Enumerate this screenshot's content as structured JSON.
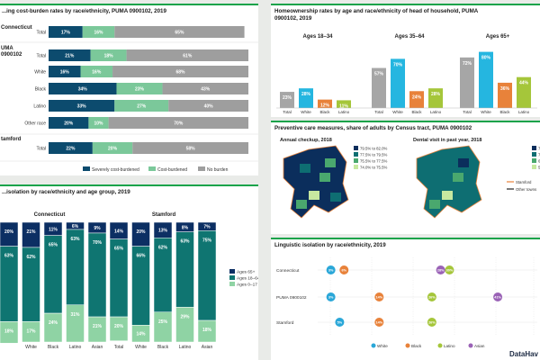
{
  "colors": {
    "severe": "#0c4b6e",
    "cost": "#7bc89a",
    "noburden": "#9e9e9e",
    "age65": "#0c2f63",
    "age1864": "#0f7571",
    "age017": "#8fd3a4",
    "white": "#2aa7d8",
    "black": "#e8823a",
    "latino": "#a5c63a",
    "asian": "#9a62b6",
    "homeown": [
      "#a6a6a6",
      "#25b6e0",
      "#e8823a",
      "#a5c63a"
    ],
    "map": [
      "#0b2e5c",
      "#0e6e72",
      "#4aa86e",
      "#c6e8a0"
    ]
  },
  "chart_data": [
    {
      "id": "cost_burden",
      "type": "bar",
      "title": "...ing cost-burden rates by race/ethnicity, PUMA 0900102, 2019",
      "groups": [
        {
          "label": "Connecticut",
          "rows": [
            {
              "category": "Total",
              "values": [
                17,
                16,
                65
              ]
            }
          ]
        },
        {
          "label": "UMA\n0900102",
          "rows": [
            {
              "category": "Total",
              "values": [
                21,
                18,
                61
              ]
            },
            {
              "category": "White",
              "values": [
                16,
                16,
                68
              ]
            },
            {
              "category": "Black",
              "values": [
                34,
                23,
                43
              ]
            },
            {
              "category": "Latino",
              "values": [
                33,
                27,
                40
              ]
            },
            {
              "category": "Other race",
              "values": [
                20,
                10,
                70
              ]
            }
          ]
        },
        {
          "label": "tamford",
          "rows": [
            {
              "category": "Total",
              "values": [
                22,
                20,
                58
              ]
            }
          ]
        }
      ],
      "series": [
        {
          "name": "Severely cost-burdened"
        },
        {
          "name": "Cost-burdened"
        },
        {
          "name": "No burden"
        }
      ]
    },
    {
      "id": "homeownership",
      "type": "bar",
      "title": "Homeownership rates by age and race/ethnicity of head of household, PUMA 0900102, 2019",
      "categories": [
        "Total",
        "White",
        "Black",
        "Latino"
      ],
      "panels": [
        {
          "label": "Ages 18–34",
          "values": [
            23,
            28,
            12,
            11
          ]
        },
        {
          "label": "Ages 35–64",
          "values": [
            57,
            70,
            24,
            28
          ]
        },
        {
          "label": "Ages 65+",
          "values": [
            72,
            80,
            36,
            44
          ]
        }
      ]
    },
    {
      "id": "preventive_maps",
      "type": "heatmap",
      "title": "Preventive care measures, share of adults by Census tract, PUMA 0900102",
      "maps": [
        {
          "label": "Annual checkup, 2018",
          "legend": [
            "79.5% to 82.0%",
            "77.5% to 79.5%",
            "75.5% to 77.5%",
            "74.0% to 75.5%"
          ]
        },
        {
          "label": "Dental visit in past year, 2018",
          "legend": [
            "77.5% to 65.0%",
            "75.0% to 77.5%",
            "64.0% to 75.0%",
            "54.0% to 64.0%"
          ]
        }
      ],
      "overlay_legend": [
        "Stamford",
        "Other towns"
      ]
    },
    {
      "id": "linguistic_age",
      "type": "bar",
      "title": "...isolation by race/ethnicity and age group, 2019",
      "panels": [
        {
          "label": "Connecticut",
          "categories": [
            "",
            "White",
            "Black",
            "Latino",
            "Asian"
          ],
          "series": [
            {
              "name": "Ages 65+",
              "values": [
                20,
                21,
                11,
                6,
                9
              ]
            },
            {
              "name": "Ages 18–64",
              "values": [
                63,
                62,
                65,
                63,
                70
              ]
            },
            {
              "name": "Ages 0–17",
              "values": [
                18,
                17,
                24,
                31,
                21
              ]
            }
          ]
        },
        {
          "label": "Stamford",
          "categories": [
            "Total",
            "White",
            "Black",
            "Latino",
            "Asian"
          ],
          "series": [
            {
              "name": "Ages 65+",
              "values": [
                14,
                20,
                13,
                8,
                7
              ]
            },
            {
              "name": "Ages 18–64",
              "values": [
                65,
                66,
                62,
                63,
                75
              ]
            },
            {
              "name": "Ages 0–17",
              "values": [
                20,
                14,
                25,
                29,
                18
              ]
            }
          ]
        }
      ],
      "legend": [
        "Ages 65+",
        "Ages 18–64",
        "Ages 0–17"
      ]
    },
    {
      "id": "linguistic_race",
      "type": "scatter",
      "title": "Linguistic isolation by race/ethnicity, 2019",
      "rows": [
        "Connecticut",
        "PUMA 0900102",
        "Stamford"
      ],
      "series": [
        {
          "name": "White",
          "values": [
            3,
            3,
            5
          ]
        },
        {
          "name": "Black",
          "values": [
            6,
            14,
            14
          ]
        },
        {
          "name": "Latino",
          "values": [
            30,
            26,
            26
          ]
        },
        {
          "name": "Asian",
          "values": [
            28,
            41,
            60
          ]
        }
      ],
      "xlim": [
        0,
        50
      ]
    }
  ],
  "brand": "DataHav"
}
